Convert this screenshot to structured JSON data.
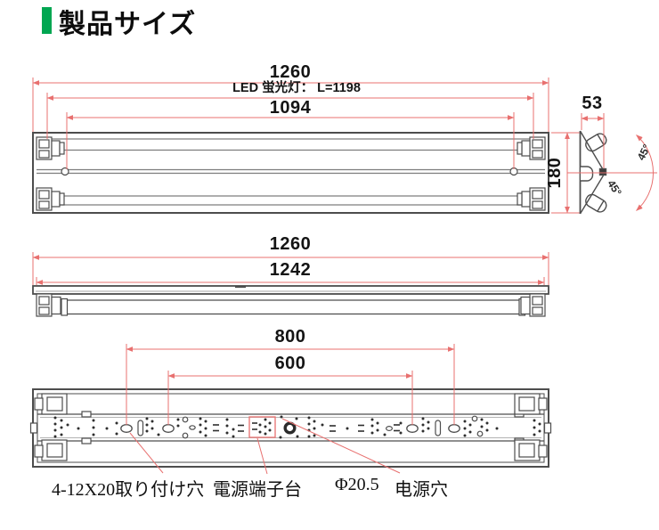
{
  "title": "製品サイズ",
  "colors": {
    "accent_green": "#00a651",
    "dimension_red": "#e8706f",
    "drawing_line": "#4d4d4d"
  },
  "front_view": {
    "overall_width": "1260",
    "tube_length": "LED 蛍光灯： L=1198",
    "hole_pitch": "1094",
    "height": "180"
  },
  "end_view": {
    "depth": "53",
    "upper_angle": "45°",
    "lower_angle": "45°"
  },
  "side_view": {
    "overall_width": "1260",
    "body_width": "1242"
  },
  "back_view": {
    "outer_hole_pitch": "800",
    "inner_hole_pitch": "600"
  },
  "callouts": {
    "mounting_holes": "4-12X20取り付け穴",
    "terminal_block": "電源端子台",
    "hole_diameter": "Φ20.5",
    "power_hole": "电源穴"
  }
}
